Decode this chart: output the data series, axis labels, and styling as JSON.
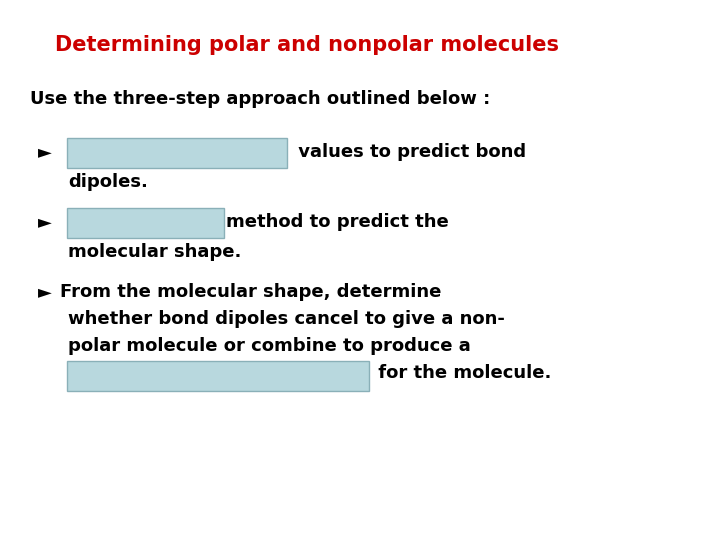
{
  "title": "Determining polar and nonpolar molecules",
  "title_color": "#cc0000",
  "title_fontsize": 15,
  "bg_color": "#ffffff",
  "body_text_color": "#000000",
  "body_fontsize": 13,
  "highlight_color": "#b8d8de",
  "highlight_edge": "#8ab0b8",
  "line1": "Use the three-step approach outlined below :",
  "bullet_arrow": "►",
  "b1_suffix": " values to predict bond",
  "b1_line2": "dipoles.",
  "b2_suffix": "method to predict the",
  "b2_line2": "molecular shape.",
  "b3_line1": "From the molecular shape, determine",
  "b3_line2": "whether bond dipoles cancel to give a non-",
  "b3_line3": "polar molecule or combine to produce a",
  "b3_suffix": " for the molecule."
}
